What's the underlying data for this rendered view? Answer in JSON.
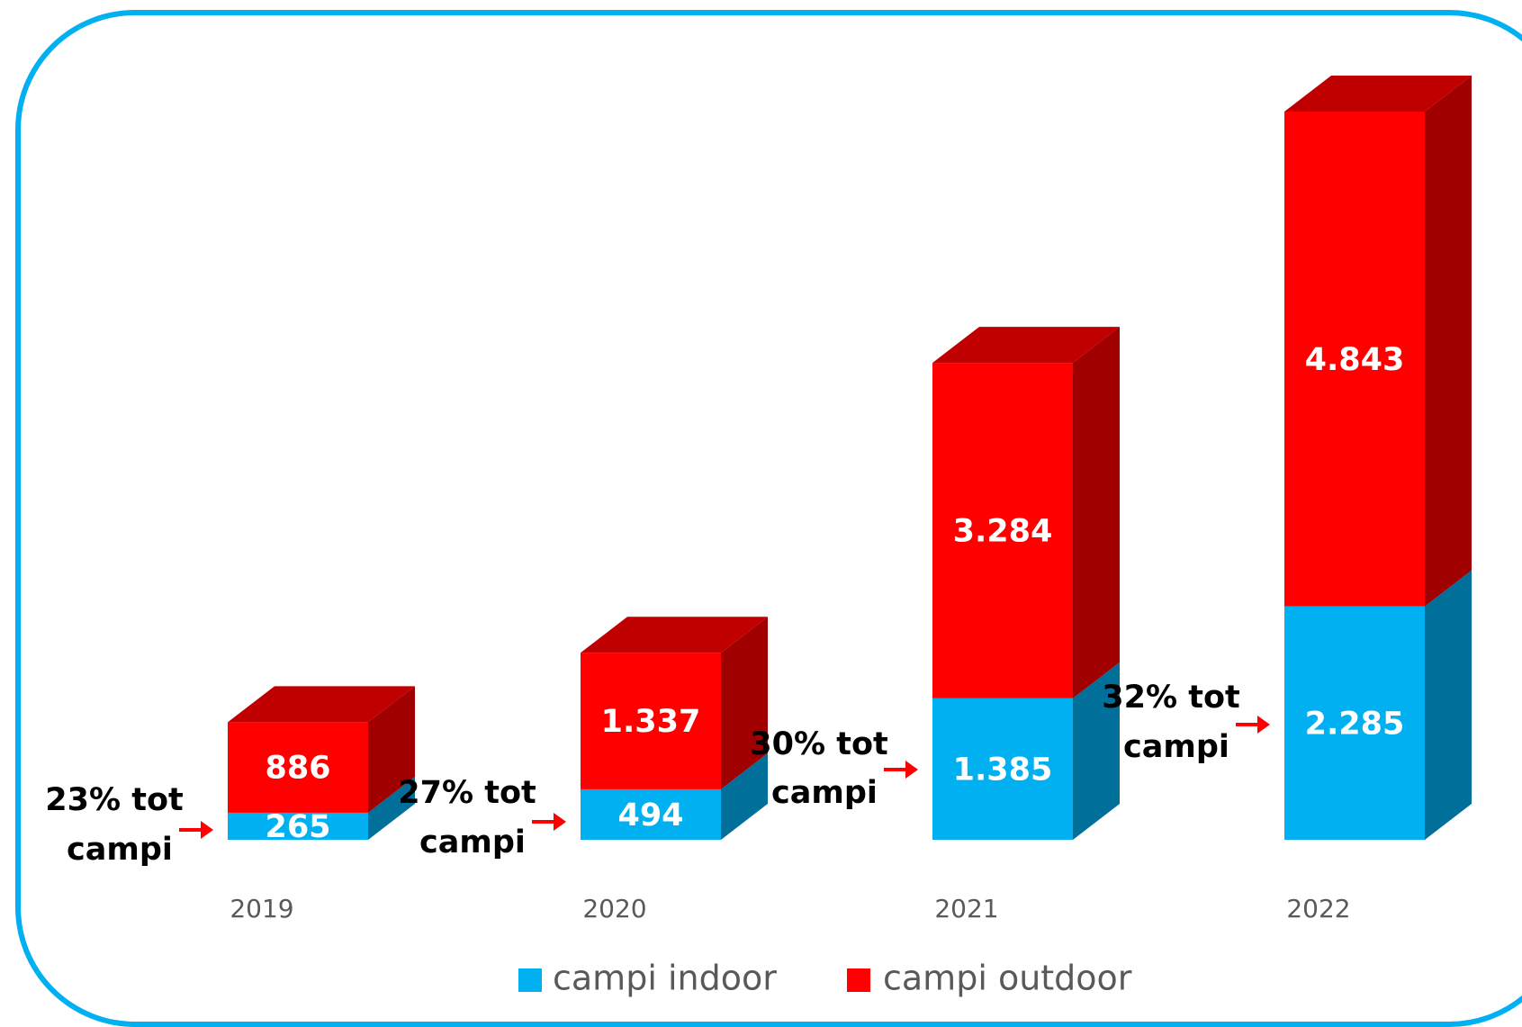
{
  "chart_data": {
    "type": "bar",
    "stacked": true,
    "categories": [
      "2019",
      "2020",
      "2021",
      "2022"
    ],
    "series": [
      {
        "name": "campi indoor",
        "color": "#00b0f0",
        "values": [
          265,
          494,
          1385,
          2285
        ],
        "value_labels": [
          "265",
          "494",
          "1.385",
          "2.285"
        ]
      },
      {
        "name": "campi outdoor",
        "color": "#ff0000",
        "values": [
          886,
          1337,
          3284,
          4843
        ],
        "value_labels": [
          "886",
          "1.337",
          "3.284",
          "4.843"
        ]
      }
    ],
    "annotations": [
      {
        "lines": [
          "23% tot",
          "campi"
        ]
      },
      {
        "lines": [
          "27% tot",
          "campi"
        ]
      },
      {
        "lines": [
          "30% tot",
          "campi"
        ]
      },
      {
        "lines": [
          "32% tot",
          "campi"
        ]
      }
    ],
    "legend": "bottom"
  }
}
